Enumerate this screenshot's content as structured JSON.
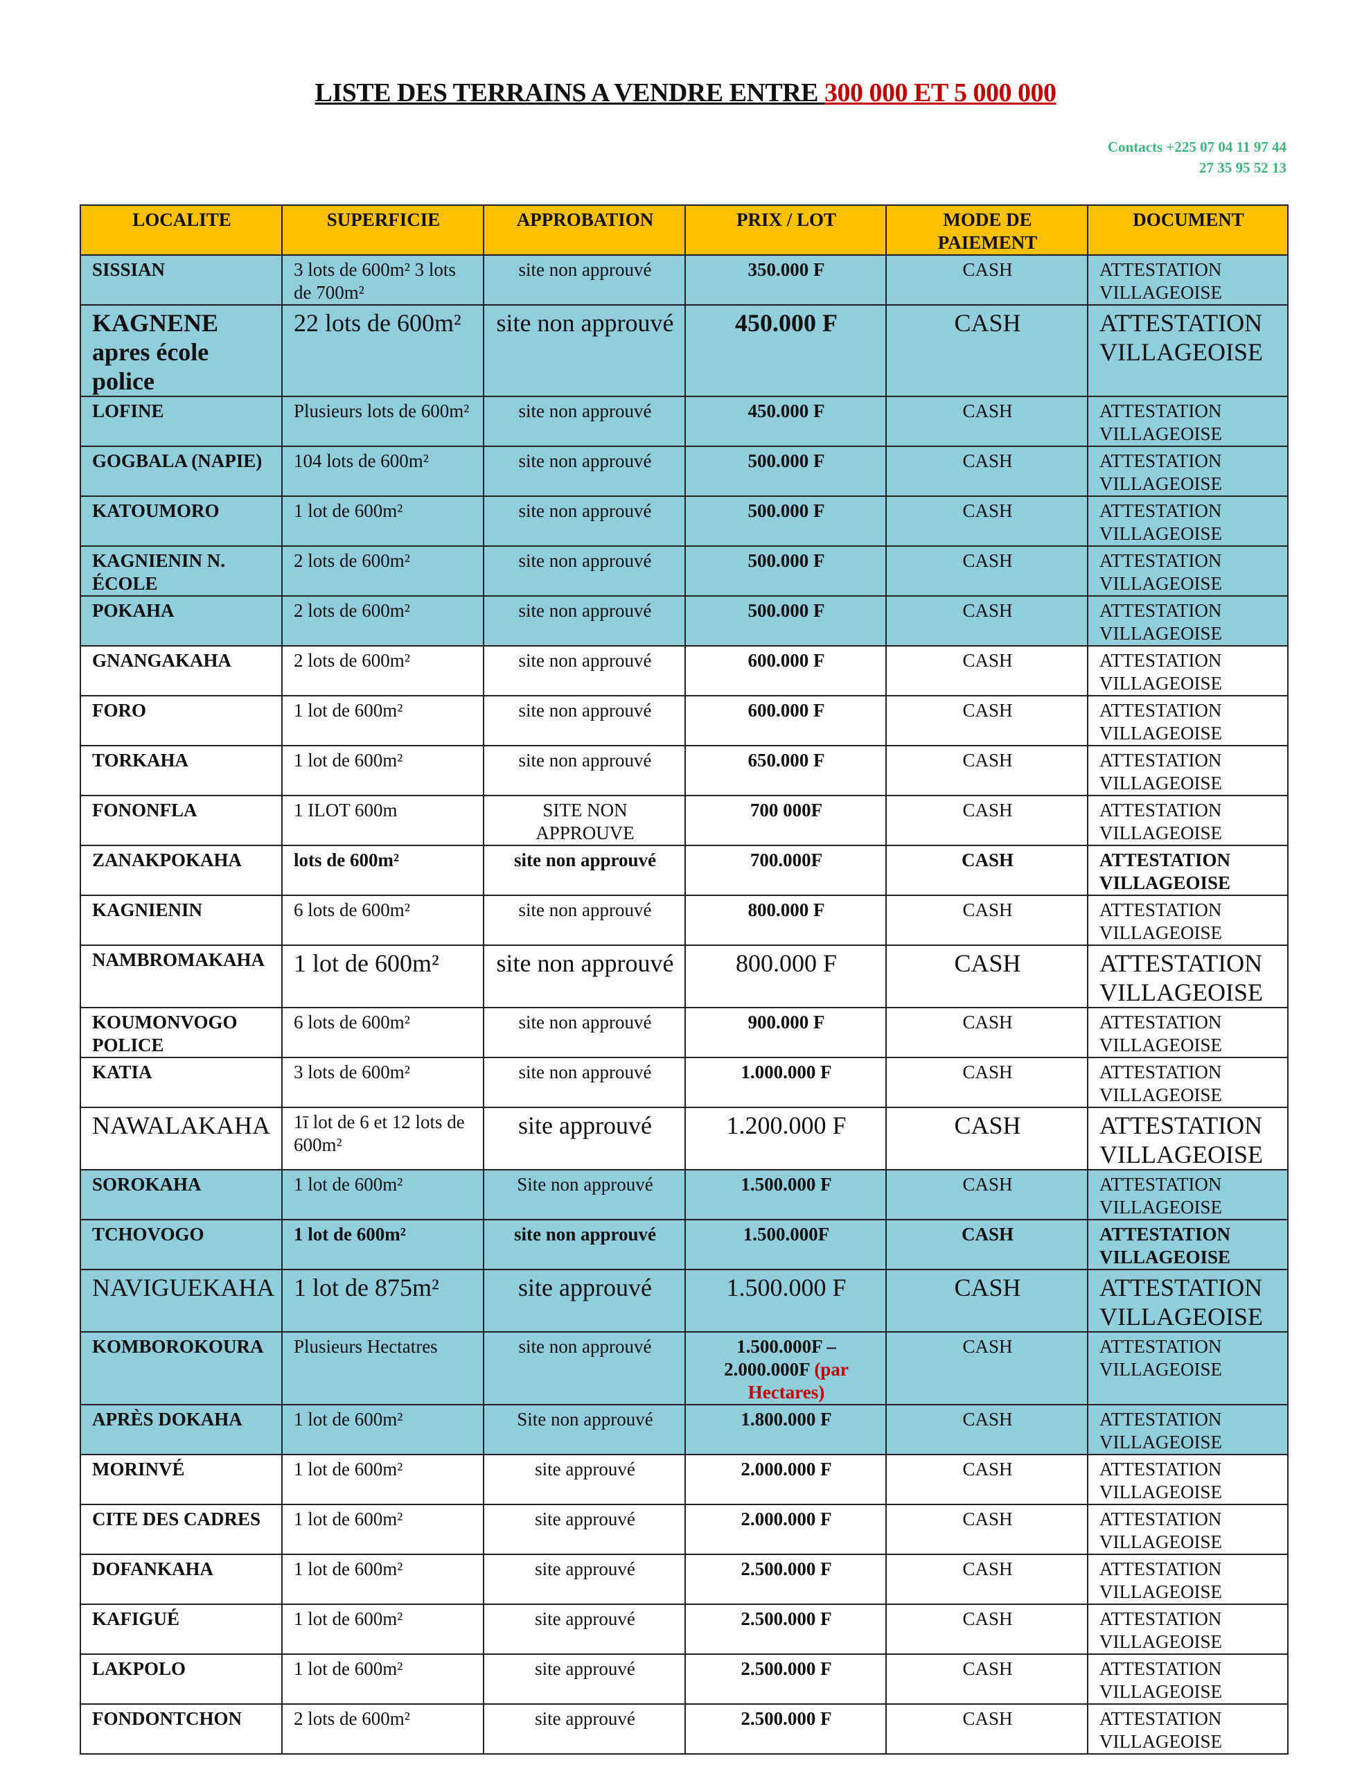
{
  "title": {
    "part1": "LISTE DES TERRAINS A VENDRE ENTRE ",
    "part2": "300 000 ET 5 000 000",
    "accent": "#C00000"
  },
  "contacts": {
    "line1": "Contacts +225 07 04 11 97 44",
    "line2": "27 35 95 52 13",
    "color": "#3fb57a"
  },
  "colors": {
    "header": "#FFC000",
    "highlight_row": "#92CDDC"
  },
  "table": {
    "headers": [
      "LOCALITE",
      "SUPERFICIE",
      "APPROBATION",
      "PRIX / LOT",
      "MODE DE PAIEMENT",
      "DOCUMENT"
    ],
    "rows": [
      {
        "localite": "SISSIAN",
        "superficie": "3 lots de 600m² 3 lots de 700m²",
        "approbation": "site non approuvé",
        "prix": "350.000 F",
        "paiement": "CASH",
        "document": "ATTESTATION VILLAGEOISE",
        "highlight": true
      },
      {
        "localite": "KAGNENE apres école police",
        "superficie": "22 lots de 600m²",
        "approbation": "site non approuvé",
        "prix": "450.000 F",
        "paiement": "CASH",
        "document": "ATTESTATION VILLAGEOISE",
        "highlight": true
      },
      {
        "localite": "LOFINE",
        "superficie": "Plusieurs lots de 600m²",
        "approbation": "site non approuvé",
        "prix": "450.000 F",
        "paiement": "CASH",
        "document": "ATTESTATION VILLAGEOISE",
        "highlight": true
      },
      {
        "localite": "GOGBALA (NAPIE)",
        "superficie": "104 lots de 600m²",
        "approbation": "site non approuvé",
        "prix": "500.000 F",
        "paiement": "CASH",
        "document": "ATTESTATION VILLAGEOISE",
        "highlight": true
      },
      {
        "localite": "KATOUMORO",
        "superficie": "1 lot de 600m²",
        "approbation": "site non approuvé",
        "prix": "500.000 F",
        "paiement": "CASH",
        "document": "ATTESTATION VILLAGEOISE",
        "highlight": true
      },
      {
        "localite": "KAGNIENIN N. ÉCOLE",
        "superficie": "2 lots de 600m²",
        "approbation": "site non approuvé",
        "prix": "500.000 F",
        "paiement": "CASH",
        "document": "ATTESTATION VILLAGEOISE",
        "highlight": true
      },
      {
        "localite": "POKAHA",
        "superficie": "2 lots de 600m²",
        "approbation": "site non approuvé",
        "prix": "500.000 F",
        "paiement": "CASH",
        "document": "ATTESTATION VILLAGEOISE",
        "highlight": true
      },
      {
        "localite": "GNANGAKAHA",
        "superficie": "2 lots de 600m²",
        "approbation": "site non approuvé",
        "prix": "600.000 F",
        "paiement": "CASH",
        "document": "ATTESTATION VILLAGEOISE",
        "highlight": false
      },
      {
        "localite": "FORO",
        "superficie": "1 lot de 600m²",
        "approbation": "site non approuvé",
        "prix": "600.000 F",
        "paiement": "CASH",
        "document": "ATTESTATION VILLAGEOISE",
        "highlight": false
      },
      {
        "localite": "TORKAHA",
        "superficie": "1 lot de 600m²",
        "approbation": "site non approuvé",
        "prix": "650.000 F",
        "paiement": "CASH",
        "document": "ATTESTATION VILLAGEOISE",
        "highlight": false
      },
      {
        "localite": "FONONFLA",
        "superficie": "1 ILOT 600m",
        "approbation": "SITE NON APPROUVE",
        "prix": "700 000F",
        "paiement": "CASH",
        "document": "ATTESTATION VILLAGEOISE",
        "highlight": false
      },
      {
        "localite": "ZANAKPOKAHA",
        "superficie": "lots de 600m²",
        "approbation": "site non approuvé",
        "prix": "700.000F",
        "paiement": "CASH",
        "document": "ATTESTATION VILLAGEOISE",
        "highlight": false
      },
      {
        "localite": "KAGNIENIN",
        "superficie": "6 lots de 600m²",
        "approbation": "site non approuvé",
        "prix": "800.000 F",
        "paiement": "CASH",
        "document": "ATTESTATION VILLAGEOISE",
        "highlight": false
      },
      {
        "localite": "NAMBROMAKAHA",
        "superficie": "1 lot de 600m²",
        "approbation": "site non approuvé",
        "prix": "800.000 F",
        "paiement": "CASH",
        "document": "ATTESTATION VILLAGEOISE",
        "highlight": false
      },
      {
        "localite": "KOUMONVOGO POLICE",
        "superficie": "6 lots de 600m²",
        "approbation": "site non approuvé",
        "prix": "900.000 F",
        "paiement": "CASH",
        "document": "ATTESTATION VILLAGEOISE",
        "highlight": false
      },
      {
        "localite": "KATIA",
        "superficie": "3 lots de 600m²",
        "approbation": "site non approuvé",
        "prix": "1.000.000 F",
        "paiement": "CASH",
        "document": "ATTESTATION VILLAGEOISE",
        "highlight": false
      },
      {
        "localite": "NAWALAKAHA",
        "superficie": "1ī lot de 6 et 12 lots de 600m²",
        "approbation": "site approuvé",
        "prix": "1.200.000 F",
        "paiement": "CASH",
        "document": "ATTESTATION VILLAGEOISE",
        "highlight": false
      },
      {
        "localite": "SOROKAHA",
        "superficie": "1 lot de 600m²",
        "approbation": "Site non approuvé",
        "prix": "1.500.000 F",
        "paiement": "CASH",
        "document": "ATTESTATION VILLAGEOISE",
        "highlight": true
      },
      {
        "localite": "TCHOVOGO",
        "superficie": "1 lot de 600m²",
        "approbation": "site non approuvé",
        "prix": "1.500.000F",
        "paiement": "CASH",
        "document": "ATTESTATION VILLAGEOISE",
        "highlight": true
      },
      {
        "localite": "NAVIGUEKAHA",
        "superficie": "1 lot de 875m²",
        "approbation": "site approuvé",
        "prix": "1.500.000 F",
        "paiement": "CASH",
        "document": "ATTESTATION VILLAGEOISE",
        "highlight": true
      },
      {
        "localite": "KOMBOROKOURA",
        "superficie": "Plusieurs Hectatres",
        "approbation": "site non approuvé",
        "prix": "1.500.000F – 2.000.000F",
        "prix_note": "(par Hectares)",
        "paiement": "CASH",
        "document": "ATTESTATION VILLAGEOISE",
        "highlight": true
      },
      {
        "localite": "APRÈS DOKAHA",
        "superficie": "1 lot de 600m²",
        "approbation": "Site non approuvé",
        "prix": "1.800.000 F",
        "paiement": "CASH",
        "document": "ATTESTATION VILLAGEOISE",
        "highlight": true
      },
      {
        "localite": "MORINVÉ",
        "superficie": "1 lot de 600m²",
        "approbation": "site approuvé",
        "prix": "2.000.000 F",
        "paiement": "CASH",
        "document": "ATTESTATION VILLAGEOISE",
        "highlight": false
      },
      {
        "localite": "CITE DES CADRES",
        "superficie": "1 lot de 600m²",
        "approbation": "site approuvé",
        "prix": "2.000.000 F",
        "paiement": "CASH",
        "document": "ATTESTATION VILLAGEOISE",
        "highlight": false
      },
      {
        "localite": "DOFANKAHA",
        "superficie": "1 lot de 600m²",
        "approbation": "site approuvé",
        "prix": "2.500.000 F",
        "paiement": "CASH",
        "document": "ATTESTATION VILLAGEOISE",
        "highlight": false
      },
      {
        "localite": "KAFIGUÉ",
        "superficie": "1 lot de 600m²",
        "approbation": "site approuvé",
        "prix": "2.500.000 F",
        "paiement": "CASH",
        "document": "ATTESTATION VILLAGEOISE",
        "highlight": false
      },
      {
        "localite": "LAKPOLO",
        "superficie": "1 lot de 600m²",
        "approbation": "site approuvé",
        "prix": "2.500.000 F",
        "paiement": "CASH",
        "document": "ATTESTATION VILLAGEOISE",
        "highlight": false
      },
      {
        "localite": "FONDONTCHON",
        "superficie": "2 lots de 600m²",
        "approbation": "site approuvé",
        "prix": "2.500.000 F",
        "paiement": "CASH",
        "document": "ATTESTATION VILLAGEOISE",
        "highlight": false
      }
    ]
  }
}
